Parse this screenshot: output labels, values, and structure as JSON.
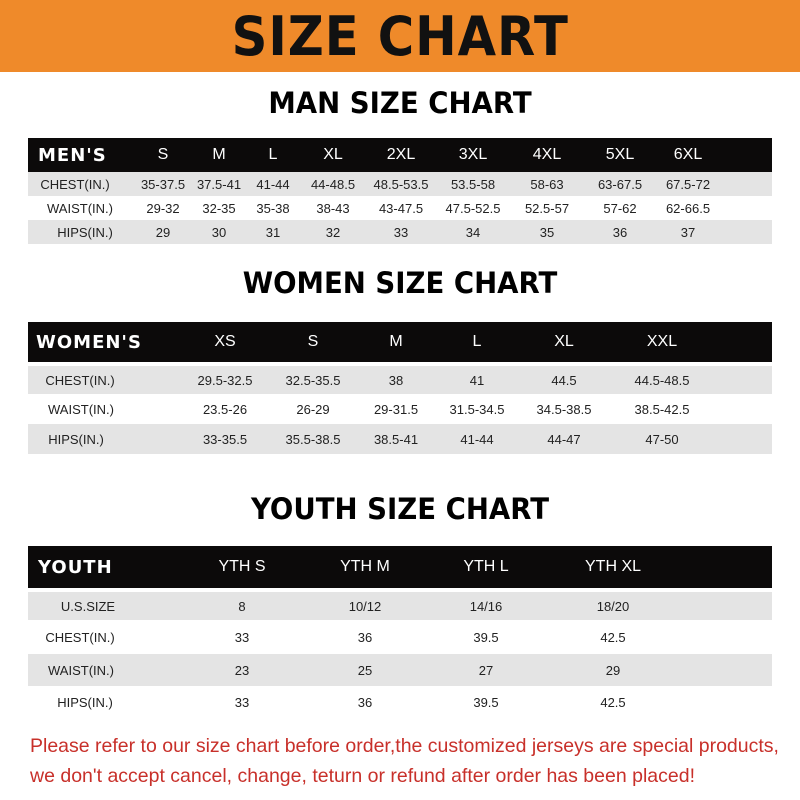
{
  "banner": {
    "title": "SIZE CHART",
    "color": "#ef8a2a"
  },
  "men": {
    "title": "MAN SIZE CHART",
    "header": [
      "MEN'S",
      "S",
      "M",
      "L",
      "XL",
      "2XL",
      "3XL",
      "4XL",
      "5XL",
      "6XL"
    ],
    "rows": [
      [
        "CHEST(IN.)",
        "35-37.5",
        "37.5-41",
        "41-44",
        "44-48.5",
        "48.5-53.5",
        "53.5-58",
        "58-63",
        "63-67.5",
        "67.5-72"
      ],
      [
        "WAIST(IN.)",
        "29-32",
        "32-35",
        "35-38",
        "38-43",
        "43-47.5",
        "47.5-52.5",
        "52.5-57",
        "57-62",
        "62-66.5"
      ],
      [
        "HIPS(IN.)",
        "29",
        "30",
        "31",
        "32",
        "33",
        "34",
        "35",
        "36",
        "37"
      ]
    ]
  },
  "women": {
    "title": "WOMEN SIZE CHART",
    "header": [
      "WOMEN'S",
      "XS",
      "S",
      "M",
      "L",
      "XL",
      "XXL"
    ],
    "rows": [
      [
        "CHEST(IN.)",
        "29.5-32.5",
        "32.5-35.5",
        "38",
        "41",
        "44.5",
        "44.5-48.5"
      ],
      [
        "WAIST(IN.)",
        "23.5-26",
        "26-29",
        "29-31.5",
        "31.5-34.5",
        "34.5-38.5",
        "38.5-42.5"
      ],
      [
        "HIPS(IN.)",
        "33-35.5",
        "35.5-38.5",
        "38.5-41",
        "41-44",
        "44-47",
        "47-50"
      ]
    ]
  },
  "youth": {
    "title": "YOUTH SIZE CHART",
    "header": [
      "YOUTH",
      "YTH S",
      "YTH M",
      "YTH L",
      "YTH XL"
    ],
    "rows": [
      [
        "U.S.SIZE",
        "8",
        "10/12",
        "14/16",
        "18/20"
      ],
      [
        "CHEST(IN.)",
        "33",
        "36",
        "39.5",
        "42.5"
      ],
      [
        "WAIST(IN.)",
        "23",
        "25",
        "27",
        "29"
      ],
      [
        "HIPS(IN.)",
        "33",
        "36",
        "39.5",
        "42.5"
      ]
    ]
  },
  "notice": {
    "line1": "Please refer to our size chart before order,the customized jerseys are special products,",
    "line2": "we don't accept cancel, change, teturn or refund after order has been placed!",
    "color": "#c8302a"
  }
}
